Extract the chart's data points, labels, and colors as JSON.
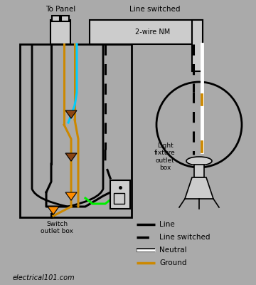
{
  "bg_color": "#aaaaaa",
  "colors": {
    "black": "#000000",
    "white": "#ffffff",
    "gold": "#cc8800",
    "cyan": "#00ccff",
    "green": "#00ee00",
    "brown": "#8B4513",
    "orange": "#ff8c00",
    "lgray": "#cccccc",
    "mgray": "#999999"
  },
  "legend_items": [
    {
      "label": "Line",
      "color": "#000000",
      "linestyle": "solid"
    },
    {
      "label": "Line switched",
      "color": "#000000",
      "linestyle": "dashed"
    },
    {
      "label": "Neutral",
      "color": "#ffffff",
      "linestyle": "solid"
    },
    {
      "label": "Ground",
      "color": "#cc8800",
      "linestyle": "solid"
    }
  ],
  "labels": {
    "to_panel": "To Panel",
    "line_switched": "Line switched",
    "nm": "2-wire NM",
    "light_box": "Light\nfixture\noutlet\nbox",
    "switch_box": "Switch\noutlet box",
    "website": "electrical101.com"
  }
}
